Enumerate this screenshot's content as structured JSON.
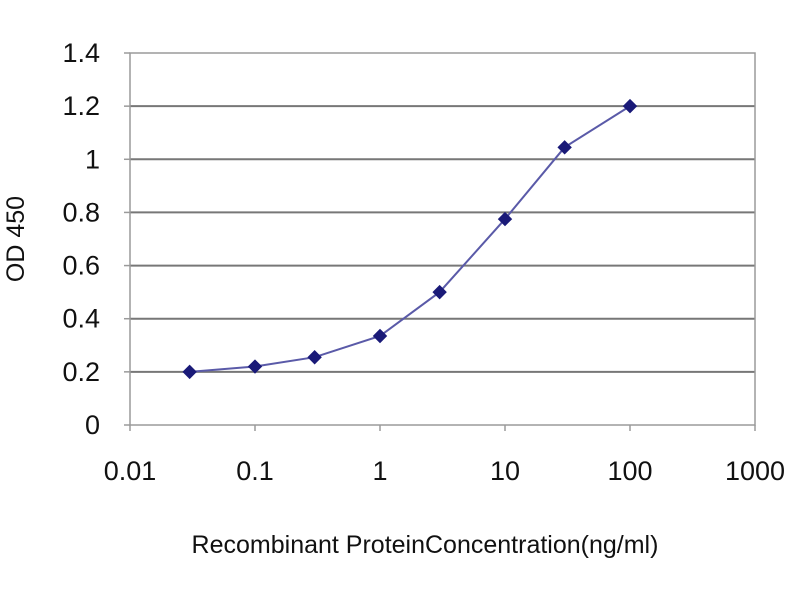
{
  "chart_data": {
    "type": "scatter",
    "xscale": "log",
    "x": [
      0.03,
      0.1,
      0.3,
      1,
      3,
      10,
      30,
      100
    ],
    "y": [
      0.2,
      0.22,
      0.255,
      0.335,
      0.5,
      0.775,
      1.045,
      1.2
    ],
    "xlim": [
      0.01,
      1000
    ],
    "ylim": [
      0,
      1.4
    ],
    "xticks": [
      0.01,
      0.1,
      1,
      10,
      100,
      1000
    ],
    "xtick_labels": [
      "0.01",
      "0.1",
      "1",
      "10",
      "100",
      "1000"
    ],
    "yticks": [
      0,
      0.2,
      0.4,
      0.6,
      0.8,
      1,
      1.2,
      1.4
    ],
    "ytick_labels": [
      "0",
      "0.2",
      "0.4",
      "0.6",
      "0.8",
      "1",
      "1.2",
      "1.4"
    ],
    "xlabel": "Recombinant ProteinConcentration(ng/ml)",
    "ylabel": "OD 450",
    "grid": "horizontal",
    "marker": "diamond",
    "colors": {
      "line": "#5a5aa8",
      "marker": "#1a1a78",
      "grid": "#777777",
      "frame": "#9a9a9a"
    }
  }
}
